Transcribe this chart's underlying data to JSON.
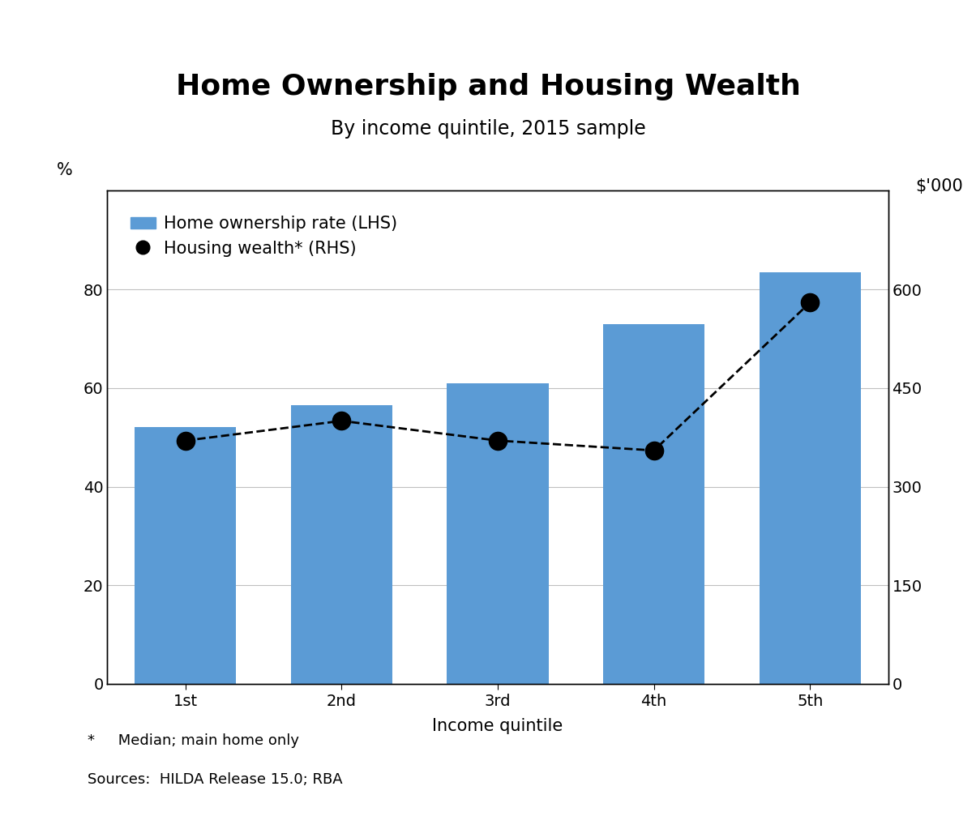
{
  "title": "Home Ownership and Housing Wealth",
  "subtitle": "By income quintile, 2015 sample",
  "xlabel": "Income quintile",
  "ylabel_left": "%",
  "ylabel_right": "$'000",
  "categories": [
    "1st",
    "2nd",
    "3rd",
    "4th",
    "5th"
  ],
  "bar_values": [
    52,
    56.5,
    61,
    73,
    83.5
  ],
  "line_values": [
    370,
    400,
    370,
    355,
    580
  ],
  "bar_color": "#5B9BD5",
  "line_color": "#000000",
  "ylim_left": [
    0,
    100
  ],
  "ylim_right": [
    0,
    750
  ],
  "yticks_left": [
    0,
    20,
    40,
    60,
    80
  ],
  "yticks_right": [
    0,
    150,
    300,
    450,
    600
  ],
  "legend_bar_label": "Home ownership rate (LHS)",
  "legend_line_label": "Housing wealth* (RHS)",
  "footnote1": "*     Median; main home only",
  "footnote2": "Sources:  HILDA Release 15.0; RBA",
  "background_color": "#ffffff",
  "title_fontsize": 26,
  "subtitle_fontsize": 17,
  "axis_label_fontsize": 15,
  "tick_fontsize": 14,
  "legend_fontsize": 15,
  "footnote_fontsize": 13
}
